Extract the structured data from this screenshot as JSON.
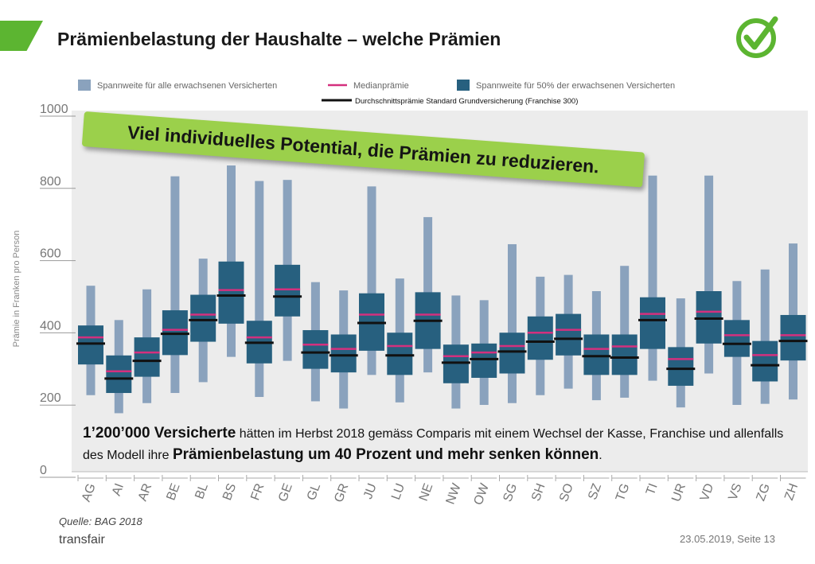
{
  "header": {
    "title": "Prämienbelastung der Haushalte – welche Prämien"
  },
  "colors": {
    "brand_green": "#5cb531",
    "full_range": "#8aa2bd",
    "iqr_box": "#27607f",
    "median": "#d4307e",
    "standard": "#111111",
    "banner": "#9bd04b"
  },
  "icon": {
    "check": "check-circle-icon"
  },
  "banner": {
    "text": "Viel individuelles Potential, die Prämien zu reduzieren."
  },
  "note": {
    "part1": "1’200’000 Versicherte",
    "part2": " hätten im Herbst 2018 gemäss Comparis mit einem Wechsel der Kasse, Franchise und allenfalls des Modell ihre ",
    "part3": "Prämienbelastung um 40 Prozent und mehr senken können",
    "part4": "."
  },
  "footer": {
    "source": "Quelle: BAG 2018",
    "brand": "transfair",
    "page": "23.05.2019, Seite 13"
  },
  "chart_data": {
    "type": "box",
    "title": "",
    "ylabel": "Prämie in Franken pro Person",
    "ylim": [
      0,
      1000
    ],
    "yticks": [
      0,
      200,
      400,
      600,
      800,
      1000
    ],
    "grid": false,
    "legend": [
      "Spannweite für alle erwachsenen Versicherten",
      "Medianprämie",
      "Spannweite für 50% der erwachsenen Versicherten",
      "Durchschnittsprämie Standard Grundversicherung (Franchise 300)"
    ],
    "categories": [
      "AG",
      "AI",
      "AR",
      "BE",
      "BL",
      "BS",
      "FR",
      "GE",
      "GL",
      "GR",
      "JU",
      "LU",
      "NE",
      "NW",
      "OW",
      "SG",
      "SH",
      "SO",
      "SZ",
      "TG",
      "TI",
      "UR",
      "VD",
      "VS",
      "ZG",
      "ZH"
    ],
    "range_min": [
      212,
      162,
      190,
      218,
      248,
      318,
      207,
      307,
      195,
      175,
      268,
      192,
      275,
      175,
      185,
      190,
      212,
      230,
      198,
      205,
      252,
      178,
      272,
      185,
      188,
      200
    ],
    "range_max": [
      515,
      420,
      505,
      818,
      590,
      848,
      805,
      808,
      525,
      502,
      790,
      535,
      705,
      488,
      475,
      630,
      540,
      545,
      500,
      570,
      820,
      480,
      820,
      528,
      560,
      632
    ],
    "q1": [
      297,
      218,
      263,
      323,
      360,
      410,
      300,
      430,
      285,
      275,
      335,
      268,
      340,
      245,
      260,
      272,
      310,
      322,
      268,
      268,
      340,
      238,
      355,
      318,
      250,
      308
    ],
    "q3": [
      405,
      322,
      372,
      447,
      490,
      582,
      418,
      573,
      392,
      380,
      494,
      385,
      497,
      352,
      355,
      385,
      430,
      437,
      380,
      380,
      483,
      345,
      500,
      420,
      362,
      434
    ],
    "median": [
      372,
      278,
      330,
      393,
      435,
      503,
      372,
      505,
      352,
      340,
      435,
      348,
      435,
      320,
      330,
      348,
      385,
      393,
      340,
      347,
      437,
      312,
      443,
      378,
      323,
      378
    ],
    "standard": [
      355,
      258,
      307,
      382,
      420,
      488,
      357,
      485,
      330,
      322,
      412,
      322,
      418,
      302,
      312,
      333,
      360,
      368,
      320,
      316,
      420,
      285,
      424,
      354,
      295,
      362
    ]
  }
}
